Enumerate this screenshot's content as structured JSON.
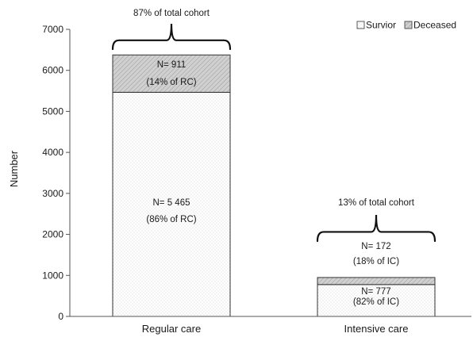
{
  "chart_data": {
    "type": "bar",
    "stacked": true,
    "ylabel": "Number",
    "ylim": [
      0,
      7000
    ],
    "yticks": [
      0,
      1000,
      2000,
      3000,
      4000,
      5000,
      6000,
      7000
    ],
    "categories": [
      "Regular care",
      "Intensive care"
    ],
    "series": [
      {
        "name": "Survior",
        "values": [
          5465,
          777
        ],
        "pattern": "dots"
      },
      {
        "name": "Deceased",
        "values": [
          911,
          172
        ],
        "pattern": "hatch"
      }
    ],
    "legend_position": "top-right",
    "grid": false,
    "segment_labels": [
      [
        {
          "count": "N= 5 465",
          "share": "(86% of RC)"
        },
        {
          "count": "N= 911",
          "share": "(14% of RC)"
        }
      ],
      [
        {
          "count": "N= 777",
          "share": "(82% of IC)"
        },
        {
          "count": "N= 172",
          "share": "(18% of IC)"
        }
      ]
    ],
    "annotations": [
      "87% of total cohort",
      "13% of total cohort"
    ]
  }
}
